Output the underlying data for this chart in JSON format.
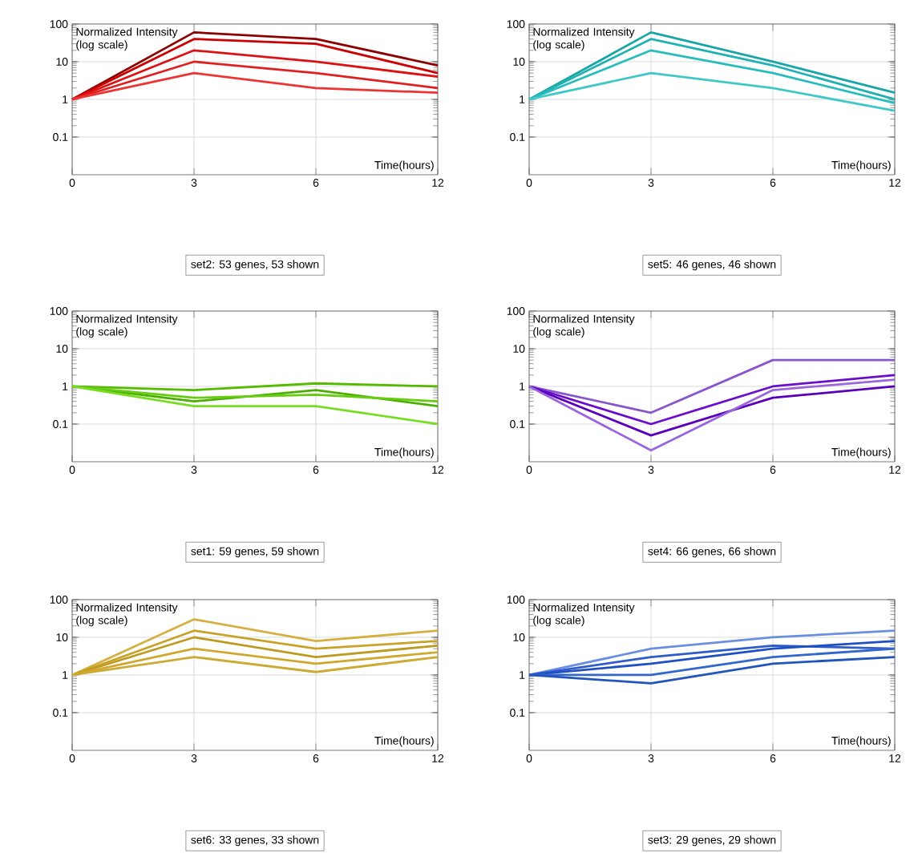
{
  "chart_data": [
    {
      "type": "line",
      "categories": [
        "0",
        "3",
        "6",
        "12"
      ],
      "xlabel": "Time(hours)",
      "ylabel": "Normalized Intensity (log scale)",
      "log": true,
      "ylim": [
        0.01,
        100
      ],
      "yticks": [
        0.1,
        1,
        10,
        100
      ],
      "grid": true,
      "annotations": [
        "set2: 53 genes, 53 shown"
      ],
      "series": [
        {
          "color": "#8b0000",
          "values": [
            1,
            60,
            40,
            8
          ]
        },
        {
          "color": "#cc0000",
          "values": [
            1,
            40,
            30,
            5
          ]
        },
        {
          "color": "#dd1111",
          "values": [
            1,
            20,
            10,
            4
          ]
        },
        {
          "color": "#e02020",
          "values": [
            1,
            10,
            5,
            2
          ]
        },
        {
          "color": "#ee3333",
          "values": [
            1,
            5,
            2,
            1.5
          ]
        }
      ]
    },
    {
      "type": "line",
      "categories": [
        "0",
        "3",
        "6",
        "12"
      ],
      "xlabel": "Time(hours)",
      "ylabel": "Normalized Intensity (log scale)",
      "log": true,
      "ylim": [
        0.01,
        100
      ],
      "yticks": [
        0.1,
        1,
        10,
        100
      ],
      "grid": true,
      "annotations": [
        "set5: 46 genes, 46 shown"
      ],
      "series": [
        {
          "color": "#1aa6a6",
          "values": [
            1,
            60,
            10,
            1.5
          ]
        },
        {
          "color": "#20b2b2",
          "values": [
            1,
            40,
            8,
            1
          ]
        },
        {
          "color": "#28bcbc",
          "values": [
            1,
            20,
            5,
            0.8
          ]
        },
        {
          "color": "#40c8c8",
          "values": [
            1,
            5,
            2,
            0.5
          ]
        }
      ]
    },
    {
      "type": "line",
      "categories": [
        "0",
        "3",
        "6",
        "12"
      ],
      "xlabel": "Time(hours)",
      "ylabel": "Normalized Intensity (log scale)",
      "log": true,
      "ylim": [
        0.01,
        100
      ],
      "yticks": [
        0.1,
        1,
        10,
        100
      ],
      "grid": true,
      "annotations": [
        "set1: 59 genes, 59 shown"
      ],
      "series": [
        {
          "color": "#55bb00",
          "values": [
            1,
            0.8,
            1.2,
            1
          ]
        },
        {
          "color": "#4caf00",
          "values": [
            1,
            0.4,
            0.8,
            0.3
          ]
        },
        {
          "color": "#66cc11",
          "values": [
            1,
            0.5,
            0.6,
            0.4
          ]
        },
        {
          "color": "#77dd22",
          "values": [
            1,
            0.3,
            0.3,
            0.1
          ]
        }
      ]
    },
    {
      "type": "line",
      "categories": [
        "0",
        "3",
        "6",
        "12"
      ],
      "xlabel": "Time(hours)",
      "ylabel": "Normalized Intensity (log scale)",
      "log": true,
      "ylim": [
        0.01,
        100
      ],
      "yticks": [
        0.1,
        1,
        10,
        100
      ],
      "grid": true,
      "annotations": [
        "set4: 66 genes, 66 shown"
      ],
      "series": [
        {
          "color": "#8855cc",
          "values": [
            1,
            0.2,
            5,
            5
          ]
        },
        {
          "color": "#6a0dcc",
          "values": [
            1,
            0.1,
            1,
            2
          ]
        },
        {
          "color": "#5a00bb",
          "values": [
            1,
            0.05,
            0.5,
            1
          ]
        },
        {
          "color": "#9966dd",
          "values": [
            1,
            0.02,
            0.8,
            1.5
          ]
        }
      ]
    },
    {
      "type": "line",
      "categories": [
        "0",
        "3",
        "6",
        "12"
      ],
      "xlabel": "Time(hours)",
      "ylabel": "Normalized Intensity (log scale)",
      "log": true,
      "ylim": [
        0.01,
        100
      ],
      "yticks": [
        0.1,
        1,
        10,
        100
      ],
      "grid": true,
      "annotations": [
        "set6: 33 genes, 33 shown"
      ],
      "series": [
        {
          "color": "#d4b040",
          "values": [
            1,
            30,
            8,
            15
          ]
        },
        {
          "color": "#c9a227",
          "values": [
            1,
            15,
            5,
            8
          ]
        },
        {
          "color": "#bf9a20",
          "values": [
            1,
            10,
            3,
            6
          ]
        },
        {
          "color": "#d0a830",
          "values": [
            1,
            5,
            2,
            4
          ]
        },
        {
          "color": "#ccaa33",
          "values": [
            1,
            3,
            1.2,
            3
          ]
        }
      ]
    },
    {
      "type": "line",
      "categories": [
        "0",
        "3",
        "6",
        "12"
      ],
      "xlabel": "Time(hours)",
      "ylabel": "Normalized Intensity (log scale)",
      "log": true,
      "ylim": [
        0.01,
        100
      ],
      "yticks": [
        0.1,
        1,
        10,
        100
      ],
      "grid": true,
      "annotations": [
        "set3: 29 genes, 29 shown"
      ],
      "series": [
        {
          "color": "#6a8fe0",
          "values": [
            1,
            5,
            10,
            15
          ]
        },
        {
          "color": "#2e5ccc",
          "values": [
            1,
            3,
            6,
            5
          ]
        },
        {
          "color": "#1f4fc4",
          "values": [
            1,
            2,
            5,
            8
          ]
        },
        {
          "color": "#3366cc",
          "values": [
            1,
            1,
            3,
            5
          ]
        },
        {
          "color": "#2255bb",
          "values": [
            1,
            0.6,
            2,
            3
          ]
        }
      ]
    }
  ]
}
